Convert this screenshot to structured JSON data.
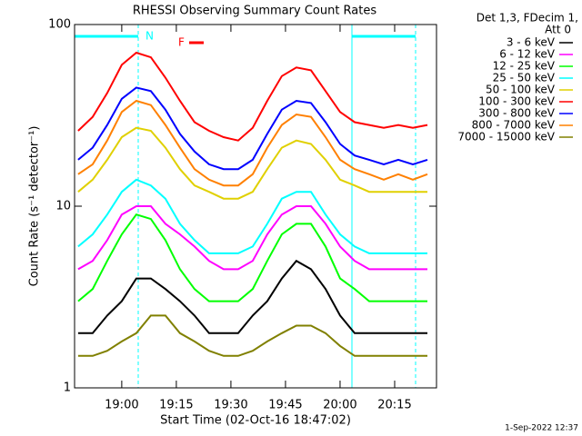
{
  "chart_data": {
    "type": "line",
    "title": "RHESSI Observing Summary Count Rates",
    "xlabel": "Start Time (02-Oct-16 18:47:02)",
    "ylabel": "Count Rate (s⁻¹ detector⁻¹)",
    "legend_header": [
      "Det 1,3, FDecim 1,",
      "Att 0"
    ],
    "footer": "1-Sep-2022 12:37",
    "annotations": [
      "N",
      "F"
    ],
    "log_y": true,
    "xlim": [
      "18:47:02",
      "20:26:30"
    ],
    "ylim": [
      1,
      100
    ],
    "xticks": [
      "19:00",
      "19:15",
      "19:30",
      "19:45",
      "20:00",
      "20:15"
    ],
    "yticks": [
      1,
      10,
      100
    ],
    "x": [
      "18:48",
      "18:52",
      "18:56",
      "19:00",
      "19:04",
      "19:08",
      "19:12",
      "19:16",
      "19:20",
      "19:24",
      "19:28",
      "19:32",
      "19:36",
      "19:40",
      "19:44",
      "19:48",
      "19:52",
      "19:56",
      "20:00",
      "20:04",
      "20:08",
      "20:12",
      "20:16",
      "20:20",
      "20:24"
    ],
    "series": [
      {
        "name": "3 - 6 keV",
        "color": "#000000",
        "values": [
          2,
          2,
          2.5,
          3,
          4,
          4,
          3.5,
          3,
          2.5,
          2,
          2,
          2,
          2.5,
          3,
          4,
          5,
          4.5,
          3.5,
          2.5,
          2,
          2,
          2,
          2,
          2,
          2
        ]
      },
      {
        "name": "6 - 12 keV",
        "color": "#ff00ff",
        "values": [
          4.5,
          5,
          6.5,
          9,
          10,
          10,
          8,
          7,
          6,
          5,
          4.5,
          4.5,
          5,
          7,
          9,
          10,
          10,
          8,
          6,
          5,
          4.5,
          4.5,
          4.5,
          4.5,
          4.5
        ]
      },
      {
        "name": "12 - 25 keV",
        "color": "#00ff00",
        "values": [
          3,
          3.5,
          5,
          7,
          9,
          8.5,
          6.5,
          4.5,
          3.5,
          3,
          3,
          3,
          3.5,
          5,
          7,
          8,
          8,
          6,
          4,
          3.5,
          3,
          3,
          3,
          3,
          3
        ]
      },
      {
        "name": "25 - 50 keV",
        "color": "#00ffff",
        "values": [
          6,
          7,
          9,
          12,
          14,
          13,
          11,
          8,
          6.5,
          5.5,
          5.5,
          5.5,
          6,
          8,
          11,
          12,
          12,
          9,
          7,
          6,
          5.5,
          5.5,
          5.5,
          5.5,
          5.5
        ]
      },
      {
        "name": "50 - 100 keV",
        "color": "#e0d000",
        "values": [
          12,
          14,
          18,
          24,
          27,
          26,
          21,
          16,
          13,
          12,
          11,
          11,
          12,
          16,
          21,
          23,
          22,
          18,
          14,
          13,
          12,
          12,
          12,
          12,
          12
        ]
      },
      {
        "name": "100 - 300 keV",
        "color": "#ff0000",
        "values": [
          26,
          31,
          42,
          60,
          70,
          66,
          51,
          38,
          29,
          26,
          24,
          23,
          27,
          38,
          52,
          58,
          56,
          43,
          33,
          29,
          28,
          27,
          28,
          27,
          28
        ]
      },
      {
        "name": "300 - 800 keV",
        "color": "#0000ff",
        "values": [
          18,
          21,
          28,
          39,
          45,
          43,
          34,
          25,
          20,
          17,
          16,
          16,
          18,
          25,
          34,
          38,
          37,
          29,
          22,
          19,
          18,
          17,
          18,
          17,
          18
        ]
      },
      {
        "name": "800 - 7000 keV",
        "color": "#ff8000",
        "values": [
          15,
          17,
          23,
          33,
          38,
          36,
          28,
          21,
          16,
          14,
          13,
          13,
          15,
          21,
          28,
          32,
          31,
          24,
          18,
          16,
          15,
          14,
          15,
          14,
          15
        ]
      },
      {
        "name": "7000 - 15000 keV",
        "color": "#808000",
        "values": [
          1.5,
          1.5,
          1.6,
          1.8,
          2,
          2.5,
          2.5,
          2,
          1.8,
          1.6,
          1.5,
          1.5,
          1.6,
          1.8,
          2,
          2.2,
          2.2,
          2,
          1.7,
          1.5,
          1.5,
          1.5,
          1.5,
          1.5,
          1.5
        ]
      }
    ]
  }
}
